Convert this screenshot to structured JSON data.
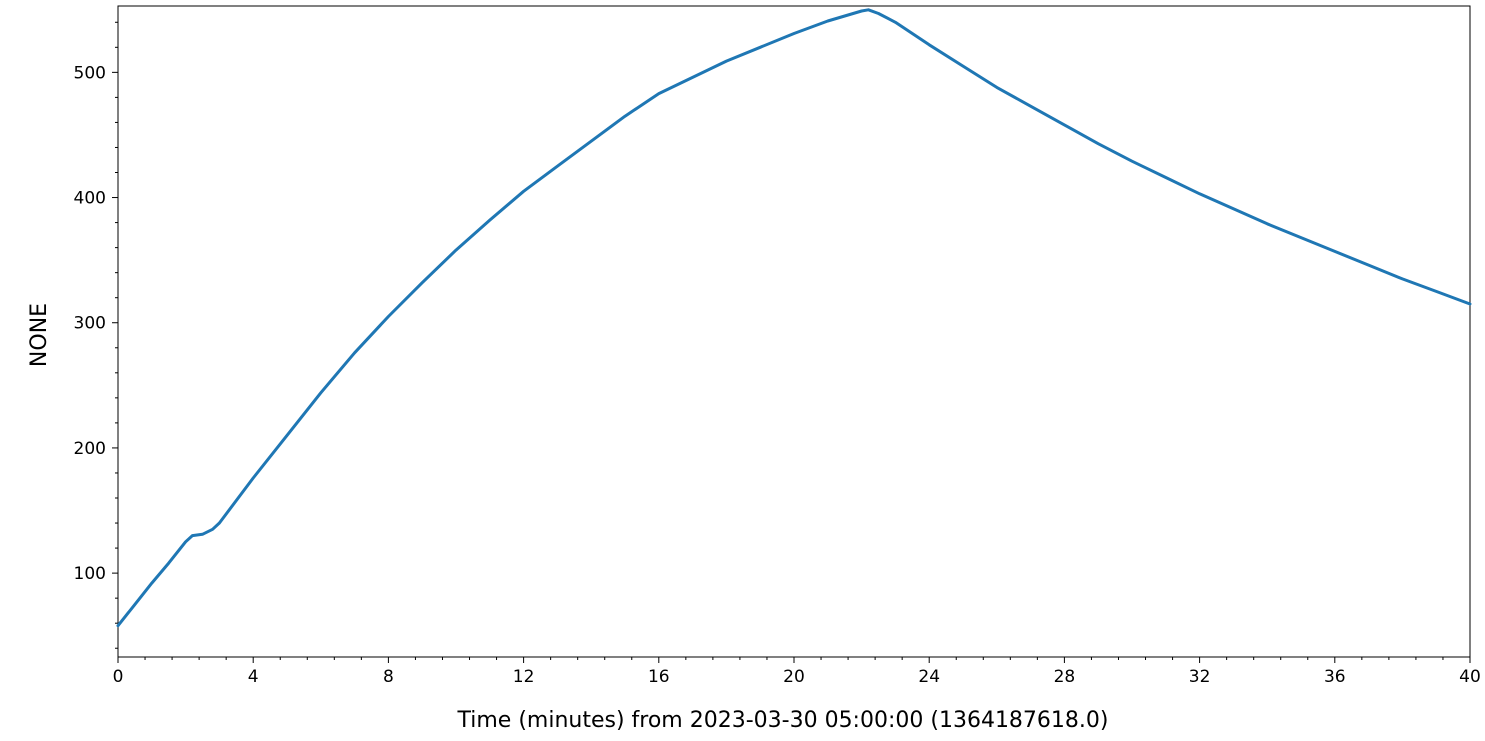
{
  "chart_data": {
    "type": "line",
    "title": "",
    "xlabel": "Time (minutes) from 2023-03-30 05:00:00 (1364187618.0)",
    "ylabel": "NONE",
    "xlim": [
      0,
      40
    ],
    "ylim": [
      33,
      553
    ],
    "x_ticks": [
      0,
      4,
      8,
      12,
      16,
      20,
      24,
      28,
      32,
      36,
      40
    ],
    "x_tick_labels": [
      "0",
      "4",
      "8",
      "12",
      "16",
      "20",
      "24",
      "28",
      "32",
      "36",
      "40"
    ],
    "y_ticks": [
      100,
      200,
      300,
      400,
      500
    ],
    "y_tick_labels": [
      "100",
      "200",
      "300",
      "400",
      "500"
    ],
    "grid": false,
    "legend": "none",
    "color": "#1f77b4",
    "series": [
      {
        "x": [
          0,
          0.5,
          1,
          1.5,
          2,
          2.2,
          2.5,
          2.8,
          3,
          4,
          5,
          6,
          7,
          8,
          9,
          10,
          11,
          12,
          13,
          14,
          15,
          16,
          17,
          18,
          19,
          20,
          21,
          22,
          22.2,
          22.5,
          23,
          24,
          25,
          26,
          27,
          28,
          29,
          30,
          31,
          32,
          33,
          34,
          35,
          36,
          37,
          38,
          39,
          40
        ],
        "y": [
          58,
          75,
          92,
          108,
          125,
          130,
          131,
          135,
          140,
          176,
          210,
          244,
          276,
          305,
          332,
          358,
          382,
          405,
          425,
          445,
          465,
          483,
          496,
          509,
          520,
          531,
          541,
          549,
          550,
          547,
          540,
          522,
          505,
          488,
          473,
          458,
          443,
          429,
          416,
          403,
          391,
          379,
          368,
          357,
          346,
          335,
          325,
          315
        ]
      }
    ]
  }
}
